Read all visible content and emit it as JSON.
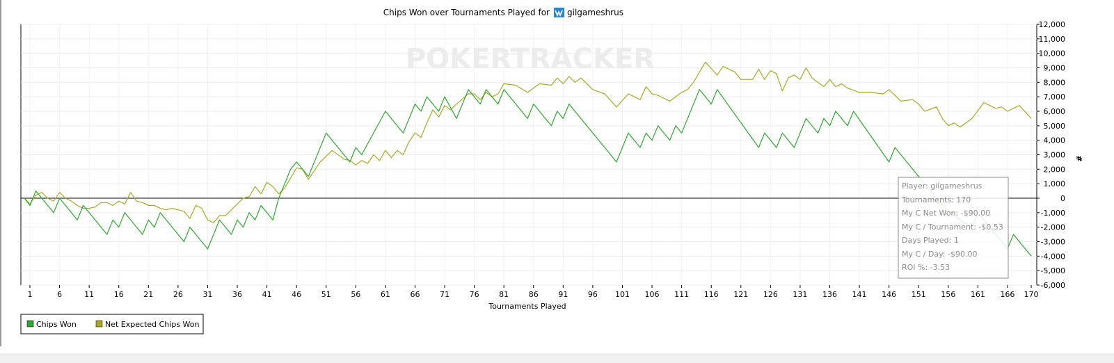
{
  "chart_data": {
    "type": "line",
    "title": "Chips Won over Tournaments Played for",
    "player_name": "gilgameshrus",
    "xlabel": "Tournaments Played",
    "ylabel": "#",
    "watermark": "POKERTRACKER",
    "xlim": [
      1,
      170
    ],
    "ylim": [
      -6000,
      12000
    ],
    "x_ticks": [
      1,
      6,
      11,
      16,
      21,
      26,
      31,
      36,
      41,
      46,
      51,
      56,
      61,
      66,
      71,
      76,
      81,
      86,
      91,
      96,
      101,
      106,
      111,
      116,
      121,
      126,
      131,
      136,
      141,
      146,
      151,
      156,
      161,
      166,
      170
    ],
    "y_ticks": [
      12000,
      11000,
      10000,
      9000,
      8000,
      7000,
      6000,
      5000,
      4000,
      3000,
      2000,
      1000,
      0,
      -1000,
      -2000,
      -3000,
      -4000,
      -5000,
      -6000
    ],
    "y_tick_labels": [
      "12,000",
      "11,000",
      "10,000",
      "9,000",
      "8,000",
      "7,000",
      "6,000",
      "5,000",
      "4,000",
      "3,000",
      "2,000",
      "1,000",
      "0",
      "-1,000",
      "-2,000",
      "-3,000",
      "-4,000",
      "-5,000",
      "-6,000"
    ],
    "grid": true,
    "legend_position": "bottom-left",
    "series": [
      {
        "name": "Chips Won",
        "color": "#2aa82a",
        "points": [
          [
            0,
            0
          ],
          [
            1,
            -500
          ],
          [
            2,
            500
          ],
          [
            3,
            0
          ],
          [
            4,
            -500
          ],
          [
            5,
            -1000
          ],
          [
            6,
            0
          ],
          [
            7,
            -500
          ],
          [
            8,
            -1000
          ],
          [
            9,
            -1500
          ],
          [
            10,
            -500
          ],
          [
            11,
            -1000
          ],
          [
            12,
            -1500
          ],
          [
            13,
            -2000
          ],
          [
            14,
            -2500
          ],
          [
            15,
            -1500
          ],
          [
            16,
            -2000
          ],
          [
            17,
            -1000
          ],
          [
            18,
            -1500
          ],
          [
            19,
            -2000
          ],
          [
            20,
            -2500
          ],
          [
            21,
            -1500
          ],
          [
            22,
            -2000
          ],
          [
            23,
            -1000
          ],
          [
            24,
            -1500
          ],
          [
            25,
            -2000
          ],
          [
            26,
            -2500
          ],
          [
            27,
            -3000
          ],
          [
            28,
            -2000
          ],
          [
            29,
            -2500
          ],
          [
            30,
            -3000
          ],
          [
            31,
            -3500
          ],
          [
            32,
            -2500
          ],
          [
            33,
            -1500
          ],
          [
            34,
            -2000
          ],
          [
            35,
            -2500
          ],
          [
            36,
            -1500
          ],
          [
            37,
            -2000
          ],
          [
            38,
            -1000
          ],
          [
            39,
            -1500
          ],
          [
            40,
            -500
          ],
          [
            41,
            -1000
          ],
          [
            42,
            -1500
          ],
          [
            43,
            0
          ],
          [
            44,
            1000
          ],
          [
            45,
            2000
          ],
          [
            46,
            2500
          ],
          [
            47,
            2000
          ],
          [
            48,
            1500
          ],
          [
            51,
            4500
          ],
          [
            55,
            2500
          ],
          [
            56,
            3500
          ],
          [
            57,
            3000
          ],
          [
            61,
            6000
          ],
          [
            64,
            4500
          ],
          [
            66,
            6500
          ],
          [
            67,
            6000
          ],
          [
            68,
            7000
          ],
          [
            70,
            6000
          ],
          [
            71,
            7000
          ],
          [
            73,
            5500
          ],
          [
            75,
            7500
          ],
          [
            77,
            6500
          ],
          [
            78,
            7500
          ],
          [
            80,
            6500
          ],
          [
            81,
            7500
          ],
          [
            85,
            5500
          ],
          [
            86,
            6500
          ],
          [
            89,
            5000
          ],
          [
            90,
            6000
          ],
          [
            91,
            5500
          ],
          [
            92,
            6500
          ],
          [
            100,
            2500
          ],
          [
            102,
            4500
          ],
          [
            104,
            3500
          ],
          [
            105,
            4500
          ],
          [
            106,
            4000
          ],
          [
            107,
            5000
          ],
          [
            109,
            4000
          ],
          [
            110,
            5000
          ],
          [
            111,
            4500
          ],
          [
            114,
            7500
          ],
          [
            116,
            6500
          ],
          [
            117,
            7500
          ],
          [
            124,
            3500
          ],
          [
            125,
            4500
          ],
          [
            127,
            3500
          ],
          [
            128,
            4500
          ],
          [
            130,
            3500
          ],
          [
            132,
            5500
          ],
          [
            134,
            4500
          ],
          [
            135,
            5500
          ],
          [
            136,
            5000
          ],
          [
            137,
            6000
          ],
          [
            139,
            5000
          ],
          [
            140,
            6000
          ],
          [
            146,
            2500
          ],
          [
            147,
            3500
          ],
          [
            154,
            0
          ],
          [
            155,
            -500
          ],
          [
            158,
            -1500
          ],
          [
            160,
            -2000
          ],
          [
            161,
            -1000
          ],
          [
            163,
            -2000
          ],
          [
            164,
            -2500
          ],
          [
            166,
            -3500
          ],
          [
            167,
            -2500
          ],
          [
            170,
            -4000
          ]
        ]
      },
      {
        "name": "Net Expected Chips Won",
        "color": "#a8a822",
        "points": [
          [
            0,
            0
          ],
          [
            1,
            -400
          ],
          [
            2,
            200
          ],
          [
            3,
            400
          ],
          [
            4,
            0
          ],
          [
            5,
            -200
          ],
          [
            6,
            400
          ],
          [
            7,
            0
          ],
          [
            8,
            -200
          ],
          [
            9,
            -500
          ],
          [
            10,
            -700
          ],
          [
            11,
            -700
          ],
          [
            12,
            -600
          ],
          [
            13,
            -300
          ],
          [
            14,
            -300
          ],
          [
            15,
            -500
          ],
          [
            16,
            -200
          ],
          [
            17,
            -400
          ],
          [
            18,
            400
          ],
          [
            19,
            -200
          ],
          [
            20,
            -300
          ],
          [
            21,
            -500
          ],
          [
            22,
            -500
          ],
          [
            23,
            -700
          ],
          [
            24,
            -800
          ],
          [
            25,
            -700
          ],
          [
            26,
            -800
          ],
          [
            27,
            -900
          ],
          [
            28,
            -1400
          ],
          [
            29,
            -500
          ],
          [
            30,
            -700
          ],
          [
            31,
            -1500
          ],
          [
            32,
            -1700
          ],
          [
            33,
            -1200
          ],
          [
            34,
            -1200
          ],
          [
            35,
            -800
          ],
          [
            36,
            -400
          ],
          [
            37,
            0
          ],
          [
            38,
            100
          ],
          [
            39,
            800
          ],
          [
            40,
            300
          ],
          [
            41,
            1100
          ],
          [
            42,
            800
          ],
          [
            43,
            300
          ],
          [
            44,
            700
          ],
          [
            45,
            1400
          ],
          [
            46,
            2100
          ],
          [
            47,
            2000
          ],
          [
            48,
            1300
          ],
          [
            50,
            2500
          ],
          [
            52,
            3300
          ],
          [
            54,
            2700
          ],
          [
            55,
            2600
          ],
          [
            56,
            2300
          ],
          [
            57,
            2600
          ],
          [
            58,
            2400
          ],
          [
            59,
            3000
          ],
          [
            60,
            2600
          ],
          [
            61,
            3300
          ],
          [
            62,
            2800
          ],
          [
            63,
            3300
          ],
          [
            64,
            3000
          ],
          [
            65,
            3900
          ],
          [
            66,
            4500
          ],
          [
            67,
            4200
          ],
          [
            68,
            5200
          ],
          [
            69,
            6100
          ],
          [
            70,
            5600
          ],
          [
            71,
            6400
          ],
          [
            72,
            6100
          ],
          [
            73,
            6500
          ],
          [
            75,
            7200
          ],
          [
            76,
            7200
          ],
          [
            77,
            6800
          ],
          [
            78,
            7300
          ],
          [
            79,
            7000
          ],
          [
            80,
            7200
          ],
          [
            81,
            7900
          ],
          [
            83,
            7800
          ],
          [
            85,
            7300
          ],
          [
            87,
            7900
          ],
          [
            89,
            7800
          ],
          [
            90,
            8300
          ],
          [
            91,
            7900
          ],
          [
            92,
            8400
          ],
          [
            93,
            8000
          ],
          [
            94,
            8300
          ],
          [
            96,
            7500
          ],
          [
            98,
            7200
          ],
          [
            100,
            6300
          ],
          [
            102,
            7200
          ],
          [
            104,
            6800
          ],
          [
            105,
            7700
          ],
          [
            106,
            7200
          ],
          [
            107,
            7100
          ],
          [
            109,
            6700
          ],
          [
            111,
            7300
          ],
          [
            112,
            7500
          ],
          [
            113,
            8000
          ],
          [
            115,
            9400
          ],
          [
            117,
            8500
          ],
          [
            118,
            9100
          ],
          [
            120,
            8700
          ],
          [
            121,
            8200
          ],
          [
            123,
            8200
          ],
          [
            124,
            8900
          ],
          [
            125,
            8200
          ],
          [
            126,
            8800
          ],
          [
            127,
            8600
          ],
          [
            128,
            7400
          ],
          [
            129,
            8300
          ],
          [
            130,
            8500
          ],
          [
            131,
            8200
          ],
          [
            132,
            9000
          ],
          [
            133,
            8300
          ],
          [
            135,
            7700
          ],
          [
            136,
            8200
          ],
          [
            137,
            7700
          ],
          [
            138,
            7900
          ],
          [
            139,
            7600
          ],
          [
            141,
            7300
          ],
          [
            143,
            7300
          ],
          [
            145,
            7200
          ],
          [
            146,
            7500
          ],
          [
            147,
            7100
          ],
          [
            148,
            6700
          ],
          [
            150,
            6800
          ],
          [
            151,
            6500
          ],
          [
            152,
            6000
          ],
          [
            154,
            6300
          ],
          [
            155,
            5500
          ],
          [
            156,
            5000
          ],
          [
            157,
            5200
          ],
          [
            158,
            4900
          ],
          [
            160,
            5500
          ],
          [
            162,
            6600
          ],
          [
            164,
            6200
          ],
          [
            165,
            6300
          ],
          [
            166,
            6000
          ],
          [
            168,
            6400
          ],
          [
            170,
            5500
          ]
        ]
      }
    ]
  },
  "tooltip": {
    "lines": [
      "Player: gilgameshrus",
      "Tournaments: 170",
      "My C Net Won: -$90.00",
      "My C / Tournament: -$0.53",
      "Days Played: 1",
      "My C / Day: -$90.00",
      "ROI %: -3.53"
    ]
  },
  "legend": {
    "items": [
      {
        "label": "Chips Won",
        "color": "#2aa82a"
      },
      {
        "label": "Net Expected Chips Won",
        "color": "#a8a822"
      }
    ]
  },
  "icons": {
    "player_network_icon": "site-logo-icon"
  }
}
